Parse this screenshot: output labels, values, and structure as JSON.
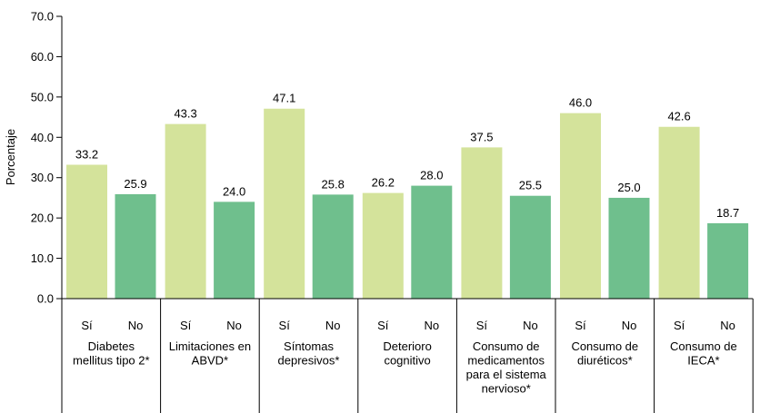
{
  "chart_data": {
    "type": "bar",
    "ylabel": "Porcentaje",
    "ylim": [
      0,
      70
    ],
    "yticks": [
      "0.0",
      "10.0",
      "20.0",
      "30.0",
      "40.0",
      "50.0",
      "60.0",
      "70.0"
    ],
    "yticks_values": [
      0,
      10,
      20,
      30,
      40,
      50,
      60,
      70
    ],
    "grid": false,
    "subcategories": [
      "Sí",
      "No"
    ],
    "colors": {
      "si": "#d4e39b",
      "no": "#6fbf8d",
      "axis": "#000000"
    },
    "groups": [
      {
        "label": [
          "Diabetes",
          "mellitus tipo 2*"
        ],
        "values": [
          33.2,
          25.9
        ],
        "value_labels": [
          "33.2",
          "25.9"
        ]
      },
      {
        "label": [
          "Limitaciones en",
          "ABVD*"
        ],
        "values": [
          43.3,
          24.0
        ],
        "value_labels": [
          "43.3",
          "24.0"
        ]
      },
      {
        "label": [
          "Síntomas",
          "depresivos*"
        ],
        "values": [
          47.1,
          25.8
        ],
        "value_labels": [
          "47.1",
          "25.8"
        ]
      },
      {
        "label": [
          "Deterioro",
          "cognitivo"
        ],
        "values": [
          26.2,
          28.0
        ],
        "value_labels": [
          "26.2",
          "28.0"
        ]
      },
      {
        "label": [
          "Consumo de",
          "medicamentos",
          "para el sistema",
          "nervioso*"
        ],
        "values": [
          37.5,
          25.5
        ],
        "value_labels": [
          "37.5",
          "25.5"
        ]
      },
      {
        "label": [
          "Consumo de",
          "diuréticos*"
        ],
        "values": [
          46.0,
          25.0
        ],
        "value_labels": [
          "46.0",
          "25.0"
        ]
      },
      {
        "label": [
          "Consumo de",
          "IECA*"
        ],
        "values": [
          42.6,
          18.7
        ],
        "value_labels": [
          "42.6",
          "18.7"
        ]
      }
    ]
  }
}
